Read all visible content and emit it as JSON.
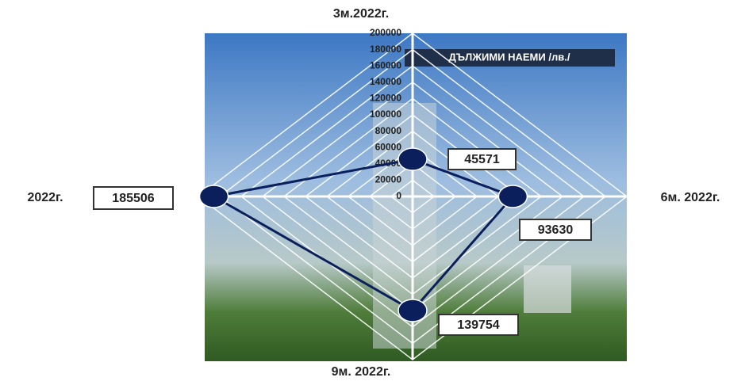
{
  "chart_data": {
    "type": "radar",
    "title": "ДЪЛЖИМИ НАЕМИ /лв./",
    "categories": [
      "3м.2022г.",
      "6м. 2022г.",
      "9м. 2022г.",
      "2022г."
    ],
    "values": [
      45571,
      93630,
      139754,
      185506
    ],
    "color": "#0a1f5c",
    "ylim": [
      0,
      200000
    ],
    "yticks": [
      0,
      20000,
      40000,
      60000,
      80000,
      100000,
      120000,
      140000,
      160000,
      180000,
      200000
    ],
    "grid": true
  }
}
